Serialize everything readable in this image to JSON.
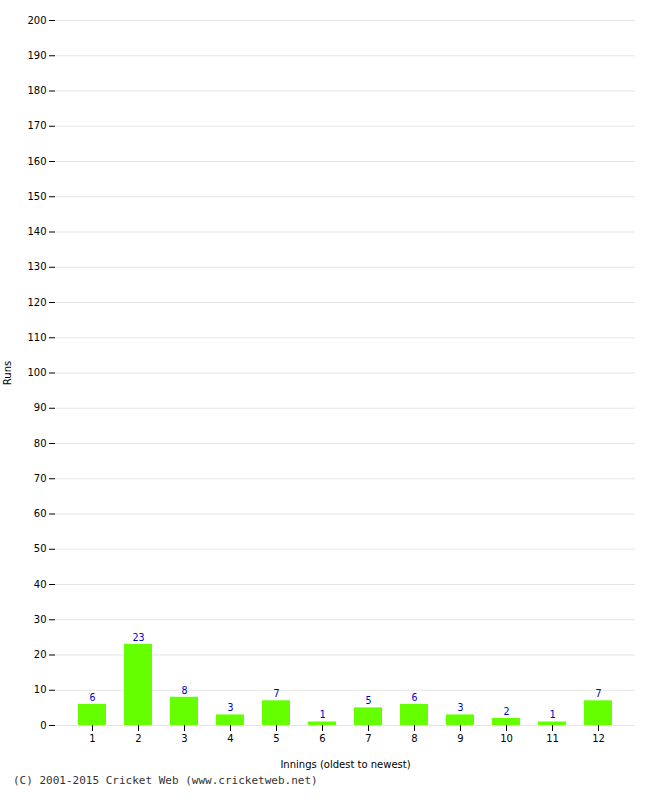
{
  "chart_data": {
    "type": "bar",
    "categories": [
      "1",
      "2",
      "3",
      "4",
      "5",
      "6",
      "7",
      "8",
      "9",
      "10",
      "11",
      "12"
    ],
    "values": [
      6,
      23,
      8,
      3,
      7,
      1,
      5,
      6,
      3,
      2,
      1,
      7
    ],
    "color": "#66ff00",
    "xlabel": "Innings (oldest to newest)",
    "ylabel": "Runs",
    "ylim": [
      0,
      200
    ],
    "yticks": [
      0,
      10,
      20,
      30,
      40,
      50,
      60,
      70,
      80,
      90,
      100,
      110,
      120,
      130,
      140,
      150,
      160,
      170,
      180,
      190,
      200
    ],
    "grid": true,
    "data_labels": true,
    "annotations": [
      "(C) 2001-2015 Cricket Web (www.cricketweb.net)"
    ]
  }
}
